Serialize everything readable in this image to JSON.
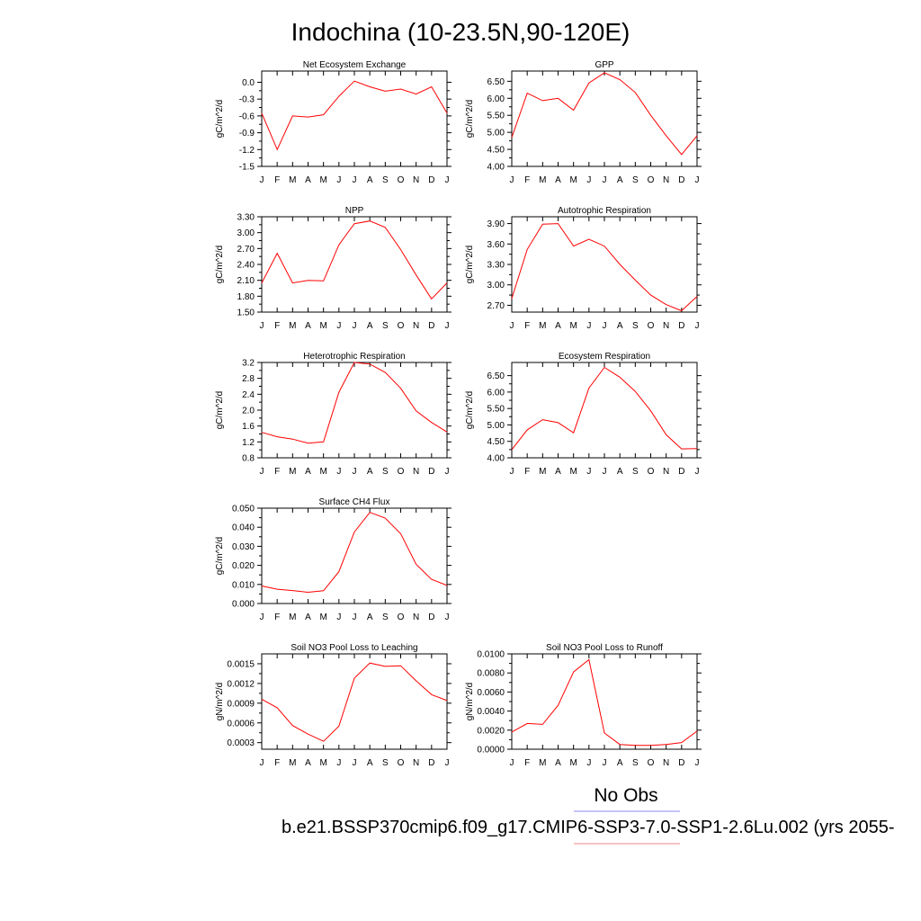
{
  "figure": {
    "title": "Indochina (10-23.5N,90-120E)",
    "legend": {
      "obs_label": "No Obs",
      "obs_color": "#8888ee",
      "case_label": "b.e21.BSSP370cmip6.f09_g17.CMIP6-SSP3-7.0-SSP1-2.6Lu.002 (yrs 2055-",
      "case_color": "#ee8888"
    },
    "line_color": "#ff0000"
  },
  "chart_data": [
    {
      "type": "line",
      "title": "Net Ecosystem Exchange",
      "ylabel": "gC/m^2/d",
      "categories": [
        "J",
        "F",
        "M",
        "A",
        "M",
        "J",
        "J",
        "A",
        "S",
        "O",
        "N",
        "D",
        "J"
      ],
      "values": [
        -0.55,
        -1.2,
        -0.6,
        -0.62,
        -0.58,
        -0.25,
        0.02,
        -0.08,
        -0.16,
        -0.12,
        -0.21,
        -0.08,
        -0.55
      ],
      "ylim": [
        -1.5,
        0.2
      ],
      "yticks": [
        -1.5,
        -1.2,
        -0.9,
        -0.6,
        -0.3,
        0.0
      ],
      "ytick_labels": [
        "-1.5",
        "-1.2",
        "-0.9",
        "-0.6",
        "-0.3",
        "0.0"
      ]
    },
    {
      "type": "line",
      "title": "GPP",
      "ylabel": "gC/m^2/d",
      "categories": [
        "J",
        "F",
        "M",
        "A",
        "M",
        "J",
        "J",
        "A",
        "S",
        "O",
        "N",
        "D",
        "J"
      ],
      "values": [
        4.85,
        6.15,
        5.93,
        6.0,
        5.65,
        6.45,
        6.75,
        6.55,
        6.17,
        5.5,
        4.9,
        4.35,
        4.9
      ],
      "ylim": [
        4.0,
        6.8
      ],
      "yticks": [
        4.0,
        4.5,
        5.0,
        5.5,
        6.0,
        6.5
      ],
      "ytick_labels": [
        "4.00",
        "4.50",
        "5.00",
        "5.50",
        "6.00",
        "6.50"
      ]
    },
    {
      "type": "line",
      "title": "NPP",
      "ylabel": "gC/m^2/d",
      "categories": [
        "J",
        "F",
        "M",
        "A",
        "M",
        "J",
        "J",
        "A",
        "S",
        "O",
        "N",
        "D",
        "J"
      ],
      "values": [
        2.05,
        2.61,
        2.05,
        2.1,
        2.09,
        2.77,
        3.17,
        3.22,
        3.1,
        2.68,
        2.2,
        1.75,
        2.05
      ],
      "ylim": [
        1.5,
        3.3
      ],
      "yticks": [
        1.5,
        1.8,
        2.1,
        2.4,
        2.7,
        3.0,
        3.3
      ],
      "ytick_labels": [
        "1.50",
        "1.80",
        "2.10",
        "2.40",
        "2.70",
        "3.00",
        "3.30"
      ]
    },
    {
      "type": "line",
      "title": "Autotrophic Respiration",
      "ylabel": "gC/m^2/d",
      "categories": [
        "J",
        "F",
        "M",
        "A",
        "M",
        "J",
        "J",
        "A",
        "S",
        "O",
        "N",
        "D",
        "J"
      ],
      "values": [
        2.8,
        3.52,
        3.89,
        3.9,
        3.57,
        3.67,
        3.57,
        3.3,
        3.07,
        2.85,
        2.71,
        2.62,
        2.83
      ],
      "ylim": [
        2.6,
        4.0
      ],
      "yticks": [
        2.7,
        3.0,
        3.3,
        3.6,
        3.9
      ],
      "ytick_labels": [
        "2.70",
        "3.00",
        "3.30",
        "3.60",
        "3.90"
      ]
    },
    {
      "type": "line",
      "title": "Heterotrophic Respiration",
      "ylabel": "gC/m^2/d",
      "categories": [
        "J",
        "F",
        "M",
        "A",
        "M",
        "J",
        "J",
        "A",
        "S",
        "O",
        "N",
        "D",
        "J"
      ],
      "values": [
        1.44,
        1.33,
        1.27,
        1.17,
        1.2,
        2.45,
        3.2,
        3.16,
        2.95,
        2.55,
        1.98,
        1.69,
        1.45
      ],
      "ylim": [
        0.8,
        3.2
      ],
      "yticks": [
        0.8,
        1.2,
        1.6,
        2.0,
        2.4,
        2.8,
        3.2
      ],
      "ytick_labels": [
        "0.8",
        "1.2",
        "1.6",
        "2.0",
        "2.4",
        "2.8",
        "3.2"
      ]
    },
    {
      "type": "line",
      "title": "Ecosystem Respiration",
      "ylabel": "gC/m^2/d",
      "categories": [
        "J",
        "F",
        "M",
        "A",
        "M",
        "J",
        "J",
        "A",
        "S",
        "O",
        "N",
        "D",
        "J"
      ],
      "values": [
        4.25,
        4.85,
        5.16,
        5.07,
        4.76,
        6.12,
        6.75,
        6.45,
        6.02,
        5.43,
        4.7,
        4.27,
        4.28
      ],
      "ylim": [
        4.0,
        6.9
      ],
      "yticks": [
        4.0,
        4.5,
        5.0,
        5.5,
        6.0,
        6.5
      ],
      "ytick_labels": [
        "4.00",
        "4.50",
        "5.00",
        "5.50",
        "6.00",
        "6.50"
      ]
    },
    {
      "type": "line",
      "title": "Surface CH4 Flux",
      "ylabel": "gC/m^2/d",
      "categories": [
        "J",
        "F",
        "M",
        "A",
        "M",
        "J",
        "J",
        "A",
        "S",
        "O",
        "N",
        "D",
        "J"
      ],
      "values": [
        0.0092,
        0.0075,
        0.0068,
        0.0059,
        0.0067,
        0.0167,
        0.0375,
        0.0478,
        0.0448,
        0.0366,
        0.0205,
        0.0127,
        0.0095
      ],
      "ylim": [
        0.0,
        0.05
      ],
      "yticks": [
        0.0,
        0.01,
        0.02,
        0.03,
        0.04,
        0.05
      ],
      "ytick_labels": [
        "0.000",
        "0.010",
        "0.020",
        "0.030",
        "0.040",
        "0.050"
      ]
    },
    {
      "type": "line",
      "title": "Soil NO3 Pool Loss to Leaching",
      "ylabel": "gN/m^2/d",
      "categories": [
        "J",
        "F",
        "M",
        "A",
        "M",
        "J",
        "J",
        "A",
        "S",
        "O",
        "N",
        "D",
        "J"
      ],
      "values": [
        0.00096,
        0.00083,
        0.00056,
        0.00043,
        0.00032,
        0.00055,
        0.00128,
        0.00151,
        0.00146,
        0.00147,
        0.00124,
        0.00103,
        0.00094
      ],
      "ylim": [
        0.0002,
        0.00165
      ],
      "yticks": [
        0.0003,
        0.0006,
        0.0009,
        0.0012,
        0.0015
      ],
      "ytick_labels": [
        "0.0003",
        "0.0006",
        "0.0009",
        "0.0012",
        "0.0015"
      ]
    },
    {
      "type": "line",
      "title": "Soil NO3 Pool Loss to Runoff",
      "ylabel": "gN/m^2/d",
      "categories": [
        "J",
        "F",
        "M",
        "A",
        "M",
        "J",
        "J",
        "A",
        "S",
        "O",
        "N",
        "D",
        "J"
      ],
      "values": [
        0.0018,
        0.0027,
        0.0026,
        0.0046,
        0.0081,
        0.0094,
        0.0017,
        0.0005,
        0.0004,
        0.0004,
        0.0005,
        0.0007,
        0.0019
      ],
      "ylim": [
        0.0,
        0.01
      ],
      "yticks": [
        0.0,
        0.002,
        0.004,
        0.006,
        0.008,
        0.01
      ],
      "ytick_labels": [
        "0.0000",
        "0.0020",
        "0.0040",
        "0.0060",
        "0.0080",
        "0.0100"
      ]
    }
  ]
}
